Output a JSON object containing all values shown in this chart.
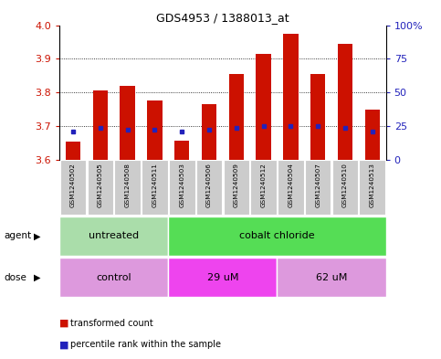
{
  "title": "GDS4953 / 1388013_at",
  "samples": [
    "GSM1240502",
    "GSM1240505",
    "GSM1240508",
    "GSM1240511",
    "GSM1240503",
    "GSM1240506",
    "GSM1240509",
    "GSM1240512",
    "GSM1240504",
    "GSM1240507",
    "GSM1240510",
    "GSM1240513"
  ],
  "bar_bottom": 3.6,
  "bar_tops": [
    3.655,
    3.805,
    3.82,
    3.775,
    3.658,
    3.765,
    3.855,
    3.915,
    3.975,
    3.855,
    3.945,
    3.75
  ],
  "blue_vals": [
    3.685,
    3.695,
    3.69,
    3.69,
    3.685,
    3.69,
    3.695,
    3.7,
    3.7,
    3.7,
    3.695,
    3.685
  ],
  "ylim": [
    3.6,
    4.0
  ],
  "yticks_left": [
    3.6,
    3.7,
    3.8,
    3.9,
    4.0
  ],
  "yticks_right": [
    0,
    25,
    50,
    75,
    100
  ],
  "bar_color": "#cc1100",
  "blue_color": "#2222bb",
  "background_color": "#ffffff",
  "agent_groups": [
    {
      "label": "untreated",
      "start": 0,
      "end": 4,
      "color": "#aaddaa"
    },
    {
      "label": "cobalt chloride",
      "start": 4,
      "end": 12,
      "color": "#55dd55"
    }
  ],
  "dose_groups": [
    {
      "label": "control",
      "start": 0,
      "end": 4,
      "color": "#dd99dd"
    },
    {
      "label": "29 uM",
      "start": 4,
      "end": 8,
      "color": "#ee44ee"
    },
    {
      "label": "62 uM",
      "start": 8,
      "end": 12,
      "color": "#dd99dd"
    }
  ],
  "legend_red": "transformed count",
  "legend_blue": "percentile rank within the sample",
  "left_tick_color": "#cc1100",
  "right_tick_color": "#2222bb",
  "tick_bg_color": "#cccccc"
}
